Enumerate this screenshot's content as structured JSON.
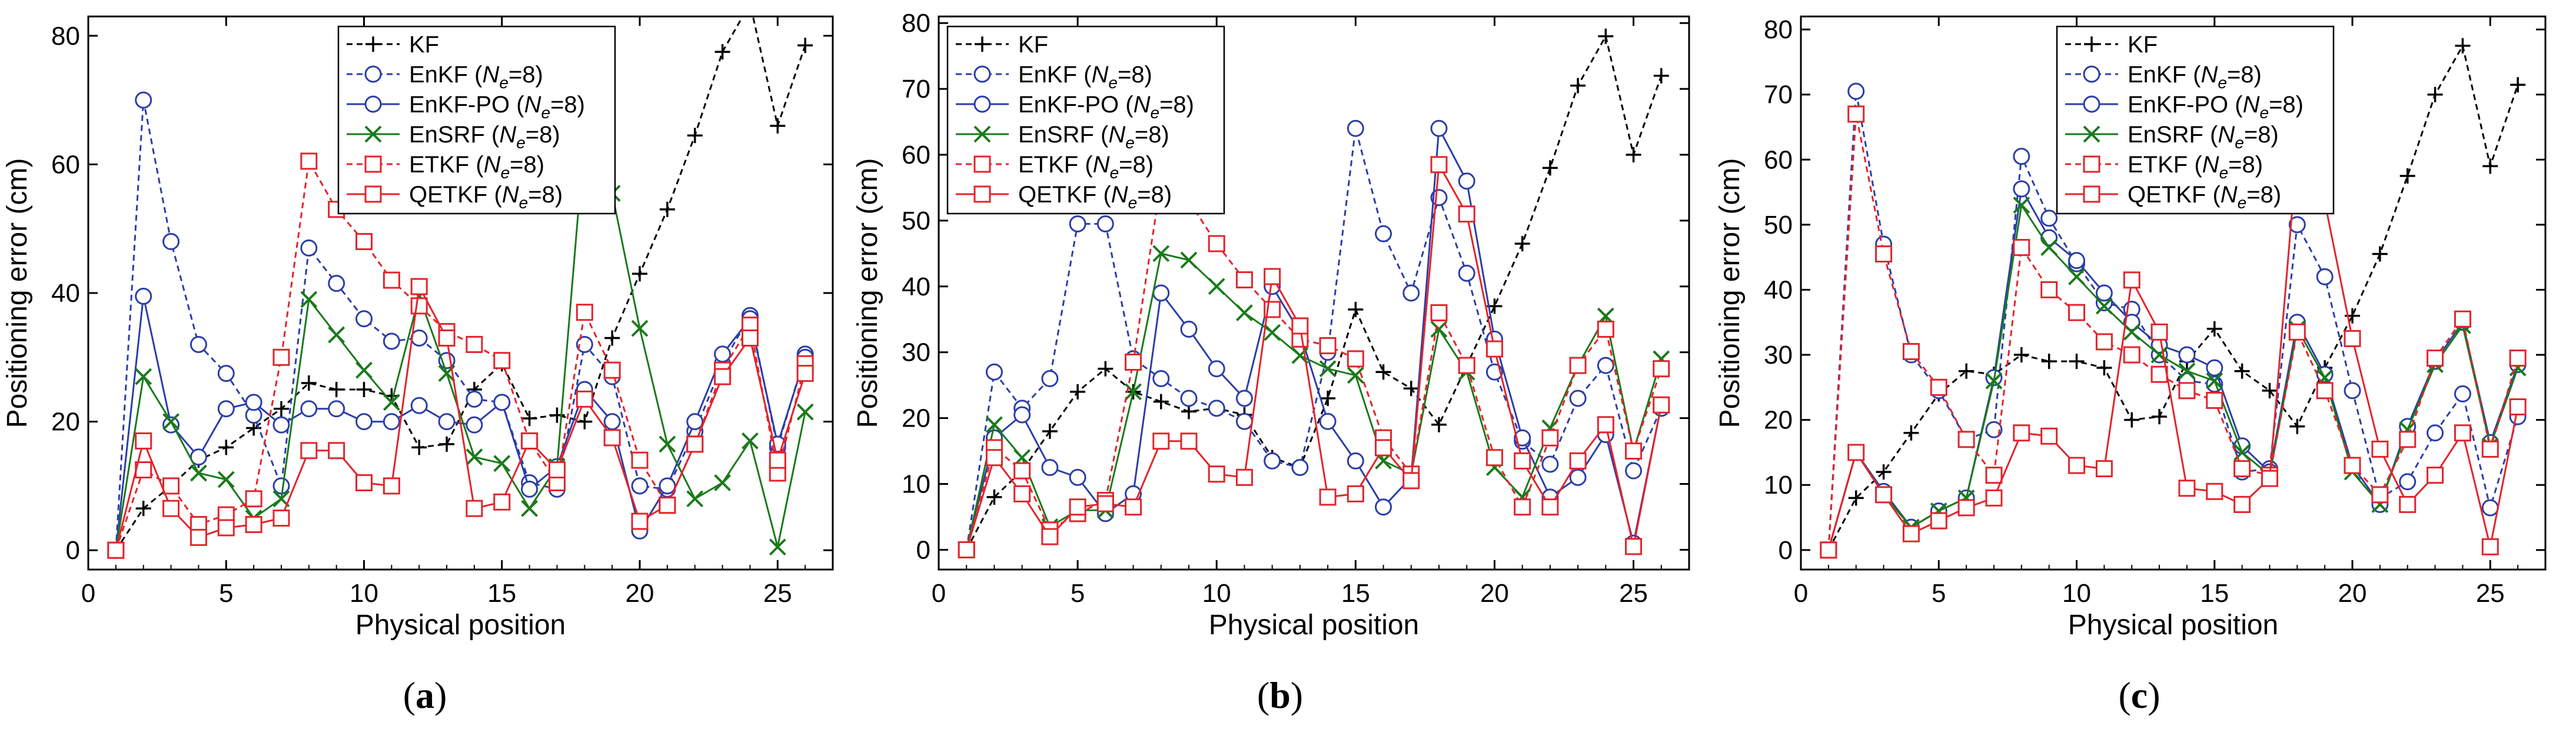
{
  "colors": {
    "KF": "#000000",
    "EnKF": "#2b3ea8",
    "EnKF-PO": "#2b3ea8",
    "EnSRF": "#1a7a1a",
    "ETKF": "#e3242b",
    "QETKF": "#e3242b"
  },
  "chart_data": [
    {
      "type": "line",
      "panel_label": "a",
      "xlabel": "Physical position",
      "ylabel": "Positioning error (cm)",
      "xlim": [
        0,
        27
      ],
      "ylim": [
        -3,
        83
      ],
      "xticks": [
        0,
        5,
        10,
        15,
        20,
        25
      ],
      "yticks": [
        0,
        20,
        40,
        60,
        80
      ],
      "legend": "top-center",
      "x": [
        1,
        2,
        3,
        4,
        5,
        6,
        7,
        8,
        9,
        10,
        11,
        12,
        13,
        14,
        15,
        16,
        17,
        18,
        19,
        20,
        21,
        22,
        23,
        24,
        25,
        26
      ],
      "series": [
        {
          "key": "KF",
          "prefix": "KF",
          "suffix": "",
          "marker": "plus",
          "dash": true,
          "values": [
            0,
            6.5,
            10,
            14,
            16,
            19,
            22,
            26,
            25,
            25,
            24,
            16,
            16.5,
            25,
            29,
            20.5,
            21,
            20,
            33,
            43,
            53,
            64.5,
            77.5,
            85,
            66,
            78.5
          ]
        },
        {
          "key": "EnKF",
          "prefix": "EnKF (",
          "suffix": "=8)",
          "marker": "circle",
          "dash": true,
          "values": [
            0,
            70,
            48,
            32,
            27.5,
            21,
            10,
            47,
            41.5,
            36,
            32.5,
            33,
            29.5,
            23.5,
            23,
            10.5,
            9.5,
            32,
            27,
            10,
            9.5,
            18.5,
            29,
            36.5,
            16,
            30.5
          ]
        },
        {
          "key": "EnKF-PO",
          "prefix": "EnKF-PO (",
          "suffix": "=8)",
          "marker": "circle",
          "dash": false,
          "values": [
            0,
            39.5,
            19.5,
            14.5,
            22,
            23,
            19.5,
            22,
            22,
            20,
            20,
            22.5,
            20,
            19.5,
            23,
            9.5,
            13,
            25,
            20,
            3,
            10,
            20,
            30.5,
            36,
            16.5,
            30
          ]
        },
        {
          "key": "EnSRF",
          "prefix": "EnSRF (",
          "suffix": "=8)",
          "marker": "cross",
          "dash": false,
          "values": [
            0,
            27,
            20,
            12,
            11,
            5,
            8,
            39,
            33.5,
            28,
            23,
            39.5,
            27.5,
            14.5,
            13.5,
            6.5,
            13,
            64.5,
            55.5,
            34.5,
            16.5,
            8,
            10.5,
            17,
            0.5,
            21.5
          ]
        },
        {
          "key": "ETKF",
          "prefix": "ETKF (",
          "suffix": "=8)",
          "marker": "square",
          "dash": true,
          "values": [
            0,
            12.5,
            10,
            4,
            5.5,
            8,
            30,
            60.5,
            53,
            48,
            42,
            38,
            34,
            32,
            29.5,
            17,
            10.5,
            37,
            28,
            14,
            7,
            16.5,
            28,
            35,
            12,
            29
          ]
        },
        {
          "key": "QETKF",
          "prefix": "QETKF (",
          "suffix": "=8)",
          "marker": "square",
          "dash": false,
          "values": [
            0,
            17,
            6.5,
            2,
            3.5,
            4,
            5,
            15.5,
            15.5,
            10.5,
            10,
            41,
            33,
            6.5,
            7.5,
            17,
            12.5,
            23.5,
            17.5,
            4.5,
            7,
            16.5,
            27,
            33,
            14,
            27.5
          ]
        }
      ]
    },
    {
      "type": "line",
      "panel_label": "b",
      "xlabel": "Physical position",
      "ylabel": "Positioning error (cm)",
      "xlim": [
        0,
        27
      ],
      "ylim": [
        -3,
        81
      ],
      "xticks": [
        0,
        5,
        10,
        15,
        20,
        25
      ],
      "yticks": [
        0,
        10,
        20,
        30,
        40,
        50,
        60,
        70,
        80
      ],
      "legend": "top-left",
      "x": [
        1,
        2,
        3,
        4,
        5,
        6,
        7,
        8,
        9,
        10,
        11,
        12,
        13,
        14,
        15,
        16,
        17,
        18,
        19,
        20,
        21,
        22,
        23,
        24,
        25,
        26
      ],
      "series": [
        {
          "key": "KF",
          "prefix": "KF",
          "suffix": "",
          "marker": "plus",
          "dash": true,
          "values": [
            0,
            8,
            12,
            18,
            24,
            27.5,
            24,
            22.5,
            21,
            21.5,
            20.5,
            14,
            12.5,
            23,
            36.5,
            27,
            24.5,
            19,
            28,
            37,
            46.5,
            58,
            70.5,
            78,
            60,
            72
          ]
        },
        {
          "key": "EnKF",
          "prefix": "EnKF (",
          "suffix": "=8)",
          "marker": "circle",
          "dash": true,
          "values": [
            0,
            27,
            21.5,
            26,
            49.5,
            49.5,
            29,
            26,
            23,
            21.5,
            19.5,
            13.5,
            12.5,
            30,
            64,
            48,
            39,
            53.5,
            42,
            27,
            16.5,
            13,
            23,
            28,
            12,
            21.5
          ]
        },
        {
          "key": "EnKF-PO",
          "prefix": "EnKF-PO (",
          "suffix": "=8)",
          "marker": "circle",
          "dash": false,
          "values": [
            0,
            17,
            20.5,
            12.5,
            11,
            5.5,
            8.5,
            39,
            33.5,
            27.5,
            23,
            40,
            33,
            19.5,
            13.5,
            6.5,
            11,
            64,
            56,
            32,
            17,
            8,
            11,
            17.5,
            1,
            22
          ]
        },
        {
          "key": "EnSRF",
          "prefix": "EnSRF (",
          "suffix": "=8)",
          "marker": "cross",
          "dash": false,
          "values": [
            0,
            19,
            14,
            3.5,
            6,
            6,
            24,
            45,
            44,
            40,
            36,
            33,
            29.5,
            27.5,
            26.5,
            13.5,
            11.5,
            33.5,
            27,
            12.5,
            8,
            18.5,
            28,
            35.5,
            15,
            29
          ]
        },
        {
          "key": "ETKF",
          "prefix": "ETKF (",
          "suffix": "=8)",
          "marker": "square",
          "dash": true,
          "values": [
            0,
            15.5,
            12,
            3,
            5.5,
            7.5,
            28.5,
            56,
            53,
            46.5,
            41,
            36.5,
            32,
            31,
            29,
            17,
            11.5,
            36,
            28,
            14,
            6.5,
            17,
            28,
            33.5,
            15,
            27.5
          ]
        },
        {
          "key": "QETKF",
          "prefix": "QETKF (",
          "suffix": "=8)",
          "marker": "square",
          "dash": false,
          "values": [
            0,
            14,
            8.5,
            2,
            6.5,
            7,
            6.5,
            16.5,
            16.5,
            11.5,
            11,
            41.5,
            34,
            8,
            8.5,
            15.5,
            10.5,
            58.5,
            51,
            30.5,
            13.5,
            6.5,
            13.5,
            19,
            0.5,
            22
          ]
        }
      ]
    },
    {
      "type": "line",
      "panel_label": "c",
      "xlabel": "Physical position",
      "ylabel": "Positioning error (cm)",
      "xlim": [
        0,
        27
      ],
      "ylim": [
        -3,
        82
      ],
      "xticks": [
        0,
        5,
        10,
        15,
        20,
        25
      ],
      "yticks": [
        0,
        10,
        20,
        30,
        40,
        50,
        60,
        70,
        80
      ],
      "legend": "top-center",
      "x": [
        1,
        2,
        3,
        4,
        5,
        6,
        7,
        8,
        9,
        10,
        11,
        12,
        13,
        14,
        15,
        16,
        17,
        18,
        19,
        20,
        21,
        22,
        23,
        24,
        25,
        26
      ],
      "series": [
        {
          "key": "KF",
          "prefix": "KF",
          "suffix": "",
          "marker": "plus",
          "dash": true,
          "values": [
            0,
            8,
            12,
            18,
            24,
            27.5,
            27,
            30,
            29,
            29,
            28,
            20,
            20.5,
            29,
            34,
            27.5,
            24.5,
            19,
            28,
            36,
            45.5,
            57.5,
            70,
            77.5,
            59,
            71.5
          ]
        },
        {
          "key": "EnKF",
          "prefix": "EnKF (",
          "suffix": "=8)",
          "marker": "circle",
          "dash": true,
          "values": [
            0,
            70.5,
            47,
            30,
            24.5,
            17,
            18.5,
            60.5,
            51,
            44,
            38,
            37,
            30,
            26,
            25.5,
            12,
            12.5,
            50,
            42,
            24.5,
            8,
            10.5,
            18,
            24,
            6.5,
            20.5
          ]
        },
        {
          "key": "EnKF-PO",
          "prefix": "EnKF-PO (",
          "suffix": "=8)",
          "marker": "circle",
          "dash": false,
          "values": [
            0,
            15,
            9,
            3.5,
            6,
            8,
            26.5,
            55.5,
            48,
            44.5,
            39.5,
            35,
            31.5,
            30,
            28,
            16,
            12,
            35,
            27,
            13,
            7,
            19,
            29,
            35,
            16.5,
            28.5
          ]
        },
        {
          "key": "EnSRF",
          "prefix": "EnSRF (",
          "suffix": "=8)",
          "marker": "cross",
          "dash": false,
          "values": [
            0,
            15,
            8.5,
            3.5,
            6,
            8,
            26,
            53,
            46.5,
            42,
            37.5,
            33.5,
            30,
            27.5,
            26,
            15,
            11.5,
            34,
            26.5,
            12,
            7,
            18.5,
            28.5,
            34.5,
            16,
            28
          ]
        },
        {
          "key": "ETKF",
          "prefix": "ETKF (",
          "suffix": "=8)",
          "marker": "square",
          "dash": true,
          "values": [
            0,
            67,
            45.5,
            30.5,
            25,
            17,
            11.5,
            46.5,
            40,
            36.5,
            32,
            30,
            27,
            24.5,
            23,
            12.5,
            11.5,
            33.5,
            24.5,
            13,
            8.5,
            17,
            29.5,
            35.5,
            15.5,
            29.5
          ]
        },
        {
          "key": "QETKF",
          "prefix": "QETKF (",
          "suffix": "=8)",
          "marker": "square",
          "dash": false,
          "values": [
            0,
            15,
            8.5,
            2.5,
            4.5,
            6.5,
            8,
            18,
            17.5,
            13,
            12.5,
            41.5,
            33.5,
            9.5,
            9,
            7,
            11,
            61.5,
            53.5,
            32.5,
            15.5,
            7,
            11.5,
            18,
            0.5,
            22
          ]
        }
      ]
    }
  ],
  "legend_symbol": "N",
  "legend_subscript": "e"
}
